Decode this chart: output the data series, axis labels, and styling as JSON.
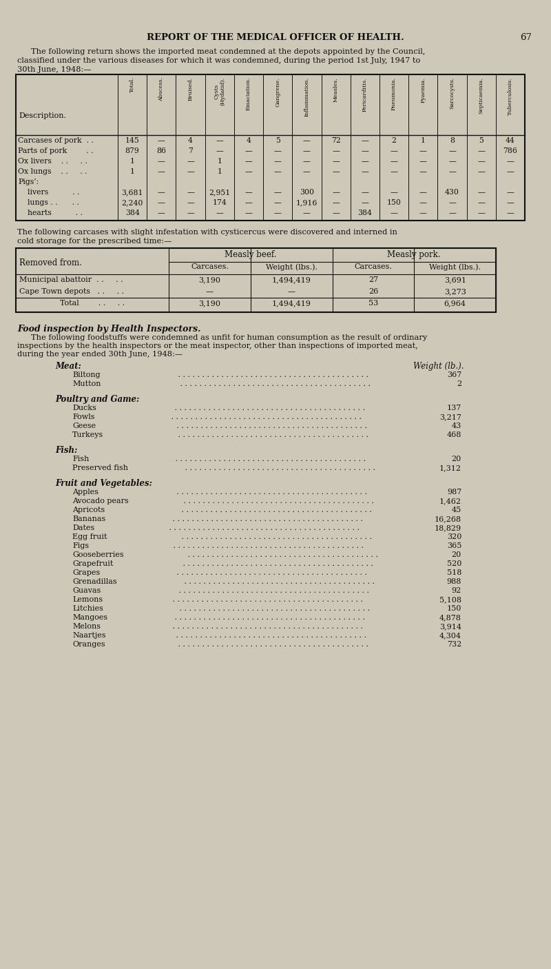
{
  "bg_color": "#cdc8b8",
  "page_title": "REPORT OF THE MEDICAL OFFICER OF HEALTH.",
  "page_number": "67",
  "intro_text1": "The following return shows the imported meat condemned at the depots appointed by the Council,",
  "intro_text2": "classified under the various diseases for which it was condemned, during the period 1st July, 1947 to",
  "intro_text3": "30th June, 1948:—",
  "table1_headers": [
    "Description.",
    "Total.",
    "Abscess.",
    "Bruised.",
    "Cysts\n(Hydatid).",
    "Emaciation.",
    "Gangrene.",
    "Inflammation.",
    "Measles.",
    "Pericarditis.",
    "Pneumonia.",
    "Pyaemia.",
    "Sarcocysts.",
    "Septicaemia.",
    "Tuberculosis."
  ],
  "table1_rows": [
    [
      "Carcases of pork  . .",
      "145",
      "—",
      "4",
      "—",
      "4",
      "5",
      "—",
      "72",
      "—",
      "2",
      "1",
      "8",
      "5",
      "44"
    ],
    [
      "Parts of pork        . .",
      "879",
      "86",
      "7",
      "—",
      "—",
      "—",
      "—",
      "—",
      "—",
      "—",
      "—",
      "—",
      "—",
      "786"
    ],
    [
      "Ox livers    . .     . .",
      "1",
      "—",
      "—",
      "1",
      "—",
      "—",
      "—",
      "—",
      "—",
      "—",
      "—",
      "—",
      "—",
      "—"
    ],
    [
      "Ox lungs    . .     . .",
      "1",
      "—",
      "—",
      "1",
      "—",
      "—",
      "—",
      "—",
      "—",
      "—",
      "—",
      "—",
      "—",
      "—"
    ],
    [
      "Pigs’:",
      "",
      "",
      "",
      "",
      "",
      "",
      "",
      "",
      "",
      "",
      "",
      "",
      "",
      ""
    ],
    [
      "    livers          . .",
      "3,681",
      "—",
      "—",
      "2,951",
      "—",
      "—",
      "300",
      "—",
      "—",
      "—",
      "—",
      "430",
      "—",
      "—"
    ],
    [
      "    lungs . .      . .",
      "2,240",
      "—",
      "—",
      "174",
      "—",
      "—",
      "1,916",
      "—",
      "—",
      "150",
      "—",
      "—",
      "—",
      "—"
    ],
    [
      "    hearts          . .",
      "384",
      "—",
      "—",
      "—",
      "—",
      "—",
      "—",
      "—",
      "384",
      "—",
      "—",
      "—",
      "—",
      "—"
    ]
  ],
  "cyst_text1": "The following carcases with slight infestation with cysticercus were discovered and interned in",
  "cyst_text2": "cold storage for the prescribed time:—",
  "table2_rows": [
    [
      "Municipal abattoir  . .     . .",
      "3,190",
      "1,494,419",
      "27",
      "3,691"
    ],
    [
      "Cape Town depots   . .     . .",
      "—",
      "—",
      "26",
      "3,273"
    ],
    [
      "Total        . .     . .",
      "3,190",
      "1,494,419",
      "53",
      "6,964"
    ]
  ],
  "food_heading": "Food inspection by Health Inspectors.",
  "food_text1": "The following foodstuffs were condemned as unfit for human consumption as the result of ordinary",
  "food_text2": "inspections by the health inspectors or the meat inspector, other than inspections of imported meat,",
  "food_text3": "during the year ended 30th June, 1948:—",
  "meat_heading": "Meat:",
  "weight_heading": "Weight (lb.).",
  "meat_items": [
    [
      "Biltong",
      "367"
    ],
    [
      "Mutton",
      "2"
    ]
  ],
  "poultry_heading": "Poultry and Game:",
  "poultry_items": [
    [
      "Ducks",
      "137"
    ],
    [
      "Fowls",
      "3,217"
    ],
    [
      "Geese",
      "43"
    ],
    [
      "Turkeys",
      "468"
    ]
  ],
  "fish_heading": "Fish:",
  "fish_items": [
    [
      "Fish",
      "20"
    ],
    [
      "Preserved fish",
      "1,312"
    ]
  ],
  "fruit_heading": "Fruit and Vegetables:",
  "fruit_items": [
    [
      "Apples",
      "987"
    ],
    [
      "Avocado pears",
      "1,462"
    ],
    [
      "Apricots",
      "45"
    ],
    [
      "Bananas",
      "16,268"
    ],
    [
      "Dates",
      "18,829"
    ],
    [
      "Egg fruit",
      "320"
    ],
    [
      "Figs",
      "365"
    ],
    [
      "Gooseberries",
      "20"
    ],
    [
      "Grapefruit",
      "520"
    ],
    [
      "Grapes",
      "518"
    ],
    [
      "Grenadillas",
      "988"
    ],
    [
      "Guavas",
      "92"
    ],
    [
      "Lemons",
      "5,108"
    ],
    [
      "Litchies",
      "150"
    ],
    [
      "Mangoes",
      "4,878"
    ],
    [
      "Melons",
      "3,914"
    ],
    [
      "Naartjes",
      "4,304"
    ],
    [
      "Oranges",
      "732"
    ]
  ]
}
